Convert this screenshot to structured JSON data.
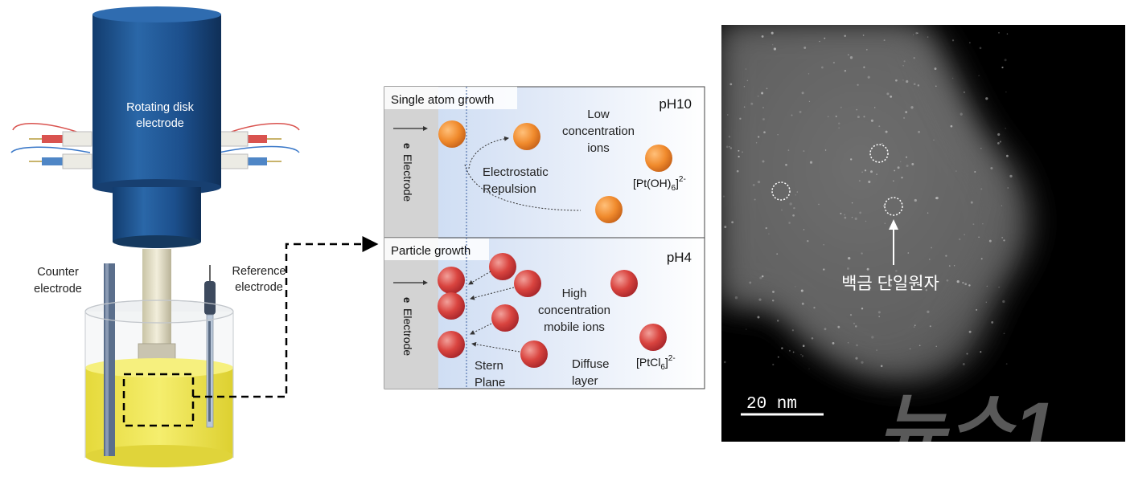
{
  "apparatus": {
    "rde_label_line1": "Rotating disk",
    "rde_label_line2": "electrode",
    "counter_line1": "Counter",
    "counter_line2": "electrode",
    "reference_line1": "Reference",
    "reference_line2": "electrode"
  },
  "panel_top": {
    "title": "Single atom growth",
    "ph": "pH10",
    "electrode_e": "e",
    "electrode_label": "Electrode",
    "ions_line1": "Low",
    "ions_line2": "concentration",
    "ions_line3": "ions",
    "repulsion_line1": "Electrostatic",
    "repulsion_line2": "Repulsion",
    "species_main": "[Pt(OH)",
    "species_sub": "6",
    "species_end": "]",
    "species_sup": "2-"
  },
  "panel_bottom": {
    "title": "Particle growth",
    "ph": "pH4",
    "electrode_e": "e",
    "electrode_label": "Electrode",
    "ions_line1": "High",
    "ions_line2": "concentration",
    "ions_line3": "mobile ions",
    "stern_line1": "Stern",
    "stern_line2": "Plane",
    "diffuse_line1": "Diffuse",
    "diffuse_line2": "layer",
    "species_main": "[PtCl",
    "species_sub": "6",
    "species_end": "]",
    "species_sup": "2-"
  },
  "micrograph": {
    "scale_label": "20 nm",
    "annotation": "백금 단일원자"
  },
  "watermark": "뉴스1",
  "colors": {
    "rde_blue": "#1c4f8c",
    "liquid_yellow": "#efe54a",
    "orange_particle": "#f08a2c",
    "red_particle": "#d9443f",
    "electrode_gray": "#d3d3d3",
    "panel_gradient": "#c9daf2"
  }
}
